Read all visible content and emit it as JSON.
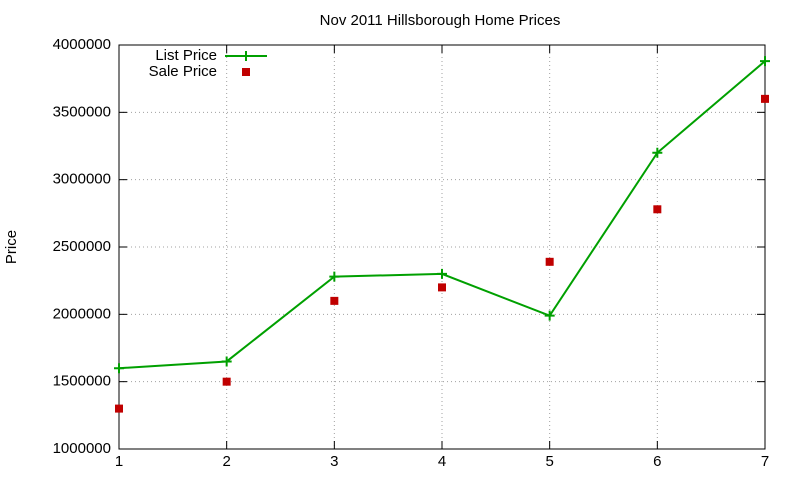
{
  "chart_data": {
    "type": "line",
    "title": "Nov 2011 Hillsborough Home Prices",
    "y_label": "Price",
    "x": [
      1,
      2,
      3,
      4,
      5,
      6,
      7
    ],
    "series": [
      {
        "name": "List Price",
        "color": "#00a000",
        "style": "linespoints",
        "values": [
          1600000,
          1650000,
          2280000,
          2300000,
          1990000,
          3200000,
          3880000
        ]
      },
      {
        "name": "Sale Price",
        "color": "#c00000",
        "style": "points",
        "values": [
          1300000,
          1500000,
          2100000,
          2200000,
          2390000,
          2780000,
          3600000
        ]
      }
    ],
    "xlim": [
      1,
      7
    ],
    "xticks": [
      1,
      2,
      3,
      4,
      5,
      6,
      7
    ],
    "ylim": [
      1000000,
      4000000
    ],
    "yticks": [
      1000000,
      1500000,
      2000000,
      2500000,
      3000000,
      3500000,
      4000000
    ],
    "grid": true,
    "legend_position": "top-left"
  }
}
